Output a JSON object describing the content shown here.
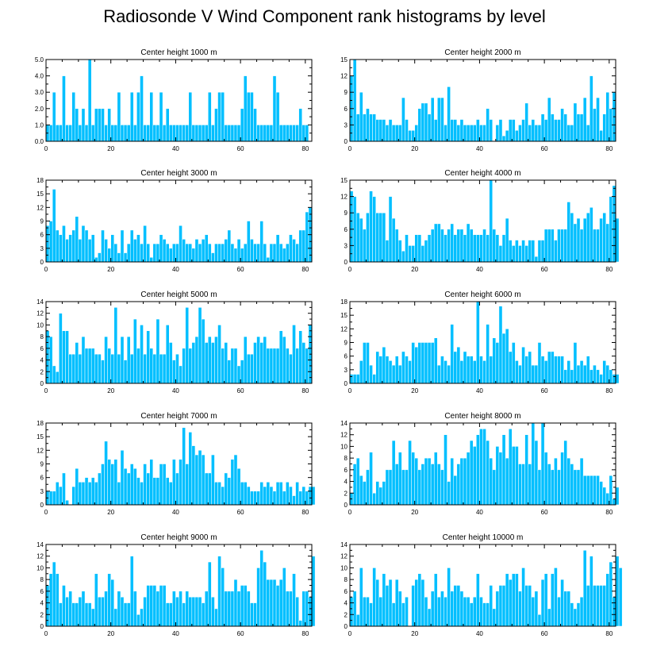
{
  "title": "Radiosonde V Wind Component rank histograms by level",
  "colors": {
    "bar": "#00bfff",
    "bar_edge": "#ffffff",
    "axis": "#000000"
  },
  "chart_data": [
    {
      "type": "bar",
      "title": "Center height 1000 m",
      "xlabel": "",
      "ylabel": "",
      "xlim": [
        0,
        82
      ],
      "ylim": [
        0,
        5
      ],
      "yticks": [
        0,
        1,
        2,
        3,
        4,
        5
      ],
      "ytick_labels": [
        "0.0",
        "1.0",
        "2.0",
        "3.0",
        "4.0",
        "5.0"
      ],
      "xticks": [
        0,
        20,
        40,
        60,
        80
      ],
      "values": [
        1,
        1,
        3,
        1,
        1,
        4,
        1,
        1,
        3,
        2,
        1,
        2,
        1,
        5,
        1,
        2,
        2,
        2,
        1,
        2,
        1,
        1,
        3,
        1,
        1,
        1,
        3,
        1,
        3,
        4,
        1,
        1,
        3,
        1,
        1,
        3,
        1,
        2,
        1,
        1,
        1,
        1,
        1,
        1,
        3,
        1,
        1,
        1,
        1,
        1,
        3,
        1,
        2,
        3,
        3,
        1,
        1,
        1,
        1,
        1,
        2,
        4,
        3,
        3,
        2,
        1,
        1,
        1,
        1,
        1,
        4,
        3,
        1,
        1,
        1,
        1,
        1,
        1,
        2,
        1,
        1
      ]
    },
    {
      "type": "bar",
      "title": "Center height 2000 m",
      "xlabel": "",
      "ylabel": "",
      "xlim": [
        0,
        82
      ],
      "ylim": [
        0,
        15
      ],
      "yticks": [
        0,
        3,
        6,
        9,
        12,
        15
      ],
      "ytick_labels": [
        "0",
        "3",
        "6",
        "9",
        "12",
        "15"
      ],
      "xticks": [
        0,
        20,
        40,
        60,
        80
      ],
      "values": [
        12,
        15,
        5,
        9,
        5,
        6,
        5,
        5,
        4,
        4,
        4,
        3,
        4,
        3,
        3,
        3,
        8,
        4,
        2,
        2,
        3,
        6,
        7,
        7,
        5,
        8,
        4,
        8,
        8,
        3,
        10,
        4,
        4,
        3,
        4,
        3,
        3,
        3,
        3,
        4,
        3,
        3,
        6,
        4,
        0,
        3,
        4,
        1,
        2,
        4,
        4,
        2,
        3,
        4,
        7,
        3,
        4,
        3,
        3,
        5,
        4,
        8,
        5,
        4,
        4,
        6,
        5,
        3,
        3,
        7,
        5,
        5,
        8,
        3,
        12,
        6,
        8,
        2,
        5,
        9,
        6,
        9
      ]
    },
    {
      "type": "bar",
      "title": "Center height 3000 m",
      "xlabel": "",
      "ylabel": "",
      "xlim": [
        0,
        82
      ],
      "ylim": [
        0,
        18
      ],
      "yticks": [
        0,
        3,
        6,
        9,
        12,
        15,
        18
      ],
      "ytick_labels": [
        "0",
        "3",
        "6",
        "9",
        "12",
        "15",
        "18"
      ],
      "xticks": [
        0,
        20,
        40,
        60,
        80
      ],
      "values": [
        8,
        9,
        16,
        7,
        6,
        8,
        5,
        6,
        7,
        10,
        5,
        8,
        7,
        5,
        6,
        1,
        2,
        7,
        5,
        3,
        6,
        4,
        2,
        7,
        2,
        4,
        7,
        5,
        6,
        4,
        8,
        4,
        1,
        4,
        4,
        6,
        5,
        4,
        3,
        4,
        4,
        8,
        5,
        4,
        4,
        3,
        5,
        4,
        5,
        6,
        4,
        2,
        4,
        4,
        4,
        5,
        7,
        4,
        3,
        5,
        3,
        4,
        9,
        5,
        4,
        4,
        9,
        4,
        1,
        4,
        4,
        6,
        4,
        3,
        4,
        6,
        5,
        4,
        7,
        7,
        11,
        12
      ]
    },
    {
      "type": "bar",
      "title": "Center height 4000 m",
      "xlabel": "",
      "ylabel": "",
      "xlim": [
        0,
        82
      ],
      "ylim": [
        0,
        15
      ],
      "yticks": [
        0,
        3,
        6,
        9,
        12,
        15
      ],
      "ytick_labels": [
        "0",
        "3",
        "6",
        "9",
        "12",
        "15"
      ],
      "xticks": [
        0,
        20,
        40,
        60,
        80
      ],
      "values": [
        13,
        12,
        9,
        8,
        6,
        9,
        13,
        12,
        9,
        9,
        9,
        4,
        12,
        8,
        6,
        4,
        2,
        5,
        3,
        3,
        5,
        5,
        3,
        4,
        5,
        6,
        7,
        7,
        6,
        5,
        6,
        7,
        5,
        6,
        6,
        5,
        7,
        6,
        5,
        5,
        5,
        6,
        5,
        15,
        6,
        5,
        3,
        5,
        8,
        4,
        3,
        4,
        3,
        4,
        3,
        4,
        4,
        1,
        4,
        4,
        6,
        6,
        6,
        4,
        6,
        6,
        6,
        11,
        9,
        7,
        8,
        6,
        8,
        9,
        10,
        6,
        6,
        8,
        9,
        7,
        12,
        14,
        8
      ]
    },
    {
      "type": "bar",
      "title": "Center height 5000 m",
      "xlabel": "",
      "ylabel": "",
      "xlim": [
        0,
        82
      ],
      "ylim": [
        0,
        14
      ],
      "yticks": [
        0,
        2,
        4,
        6,
        8,
        10,
        12,
        14
      ],
      "ytick_labels": [
        "0",
        "2",
        "4",
        "6",
        "8",
        "10",
        "12",
        "14"
      ],
      "xticks": [
        0,
        20,
        40,
        60,
        80
      ],
      "values": [
        9,
        8,
        3,
        2,
        12,
        9,
        9,
        5,
        5,
        7,
        5,
        8,
        6,
        6,
        6,
        5,
        5,
        4,
        8,
        6,
        5,
        13,
        5,
        8,
        4,
        8,
        5,
        11,
        6,
        10,
        5,
        9,
        6,
        5,
        11,
        5,
        5,
        10,
        7,
        4,
        5,
        3,
        6,
        13,
        6,
        7,
        8,
        13,
        11,
        7,
        8,
        7,
        8,
        10,
        6,
        7,
        4,
        6,
        6,
        3,
        4,
        8,
        5,
        5,
        7,
        8,
        7,
        8,
        6,
        6,
        6,
        6,
        9,
        8,
        6,
        5,
        10,
        6,
        9,
        7,
        6,
        10
      ]
    },
    {
      "type": "bar",
      "title": "Center height 6000 m",
      "xlabel": "",
      "ylabel": "",
      "xlim": [
        0,
        82
      ],
      "ylim": [
        0,
        18
      ],
      "yticks": [
        0,
        3,
        6,
        9,
        12,
        15,
        18
      ],
      "ytick_labels": [
        "0",
        "3",
        "6",
        "9",
        "12",
        "15",
        "18"
      ],
      "xticks": [
        0,
        20,
        40,
        60,
        80
      ],
      "values": [
        2,
        2,
        2,
        5,
        9,
        9,
        4,
        2,
        7,
        6,
        8,
        6,
        5,
        4,
        6,
        4,
        7,
        6,
        5,
        9,
        8,
        9,
        9,
        9,
        9,
        9,
        10,
        4,
        6,
        5,
        4,
        13,
        7,
        8,
        5,
        7,
        6,
        6,
        5,
        18,
        6,
        5,
        13,
        6,
        10,
        9,
        17,
        11,
        12,
        7,
        9,
        5,
        4,
        8,
        6,
        7,
        4,
        4,
        9,
        6,
        5,
        7,
        7,
        6,
        6,
        6,
        3,
        5,
        3,
        9,
        4,
        5,
        4,
        6,
        3,
        4,
        3,
        2,
        5,
        4,
        3,
        2,
        2
      ]
    },
    {
      "type": "bar",
      "title": "Center height 7000 m",
      "xlabel": "",
      "ylabel": "",
      "xlim": [
        0,
        82
      ],
      "ylim": [
        0,
        18
      ],
      "yticks": [
        0,
        3,
        6,
        9,
        12,
        15,
        18
      ],
      "ytick_labels": [
        "0",
        "3",
        "6",
        "9",
        "12",
        "15",
        "18"
      ],
      "xticks": [
        0,
        20,
        40,
        60,
        80
      ],
      "values": [
        3,
        3,
        3,
        5,
        4,
        7,
        1,
        0,
        4,
        8,
        5,
        5,
        6,
        5,
        6,
        5,
        7,
        9,
        14,
        10,
        9,
        10,
        5,
        12,
        8,
        7,
        9,
        8,
        6,
        5,
        9,
        7,
        10,
        6,
        6,
        9,
        9,
        6,
        5,
        10,
        7,
        10,
        17,
        9,
        16,
        13,
        11,
        12,
        11,
        7,
        7,
        11,
        5,
        5,
        4,
        7,
        6,
        10,
        11,
        8,
        5,
        5,
        4,
        3,
        3,
        3,
        5,
        4,
        5,
        4,
        3,
        5,
        5,
        3,
        5,
        4,
        2,
        5,
        3,
        4,
        3,
        4,
        4
      ]
    },
    {
      "type": "bar",
      "title": "Center height 8000 m",
      "xlabel": "",
      "ylabel": "",
      "xlim": [
        0,
        82
      ],
      "ylim": [
        0,
        14
      ],
      "yticks": [
        0,
        2,
        4,
        6,
        8,
        10,
        12,
        14
      ],
      "ytick_labels": [
        "0",
        "2",
        "4",
        "6",
        "8",
        "10",
        "12",
        "14"
      ],
      "xticks": [
        0,
        20,
        40,
        60,
        80
      ],
      "values": [
        2,
        7,
        8,
        5,
        4,
        6,
        9,
        2,
        4,
        3,
        4,
        6,
        6,
        11,
        7,
        9,
        6,
        6,
        11,
        9,
        8,
        6,
        7,
        8,
        8,
        7,
        9,
        7,
        6,
        12,
        4,
        8,
        5,
        7,
        8,
        8,
        9,
        11,
        10,
        12,
        13,
        13,
        11,
        8,
        6,
        10,
        9,
        12,
        8,
        13,
        10,
        10,
        7,
        7,
        12,
        7,
        14,
        11,
        6,
        14,
        9,
        7,
        6,
        8,
        6,
        9,
        11,
        8,
        7,
        6,
        6,
        8,
        5,
        5,
        5,
        5,
        5,
        4,
        3,
        2,
        5,
        1,
        3
      ]
    },
    {
      "type": "bar",
      "title": "Center height 9000 m",
      "xlabel": "",
      "ylabel": "",
      "xlim": [
        0,
        82
      ],
      "ylim": [
        0,
        14
      ],
      "yticks": [
        0,
        2,
        4,
        6,
        8,
        10,
        12,
        14
      ],
      "ytick_labels": [
        "0",
        "2",
        "4",
        "6",
        "8",
        "10",
        "12",
        "14"
      ],
      "xticks": [
        0,
        20,
        40,
        60,
        80
      ],
      "values": [
        7,
        9,
        11,
        9,
        4,
        7,
        5,
        6,
        4,
        4,
        5,
        6,
        4,
        4,
        3,
        9,
        5,
        5,
        6,
        9,
        8,
        3,
        6,
        5,
        4,
        4,
        12,
        6,
        2,
        3,
        5,
        7,
        7,
        7,
        6,
        7,
        7,
        4,
        4,
        6,
        5,
        6,
        4,
        6,
        5,
        5,
        5,
        5,
        4,
        6,
        11,
        5,
        3,
        12,
        10,
        6,
        6,
        6,
        8,
        6,
        7,
        7,
        6,
        4,
        4,
        10,
        13,
        11,
        8,
        8,
        8,
        7,
        8,
        10,
        6,
        6,
        9,
        5,
        1,
        6,
        6,
        5,
        12
      ]
    },
    {
      "type": "bar",
      "title": "Center height 10000 m",
      "xlabel": "",
      "ylabel": "",
      "xlim": [
        0,
        82
      ],
      "ylim": [
        0,
        14
      ],
      "yticks": [
        0,
        2,
        4,
        6,
        8,
        10,
        12,
        14
      ],
      "ytick_labels": [
        "0",
        "2",
        "4",
        "6",
        "8",
        "10",
        "12",
        "14"
      ],
      "xticks": [
        0,
        20,
        40,
        60,
        80
      ],
      "values": [
        5,
        6,
        2,
        10,
        5,
        5,
        4,
        10,
        8,
        5,
        9,
        7,
        8,
        4,
        8,
        6,
        4,
        5,
        0,
        7,
        8,
        9,
        8,
        5,
        3,
        6,
        9,
        5,
        6,
        5,
        10,
        6,
        7,
        7,
        6,
        5,
        5,
        4,
        5,
        9,
        5,
        4,
        4,
        7,
        3,
        6,
        7,
        7,
        9,
        8,
        9,
        9,
        6,
        10,
        7,
        7,
        5,
        6,
        2,
        8,
        9,
        3,
        9,
        10,
        5,
        8,
        6,
        6,
        4,
        3,
        4,
        5,
        13,
        7,
        12,
        7,
        7,
        7,
        7,
        9,
        11,
        5,
        12,
        10
      ]
    }
  ]
}
